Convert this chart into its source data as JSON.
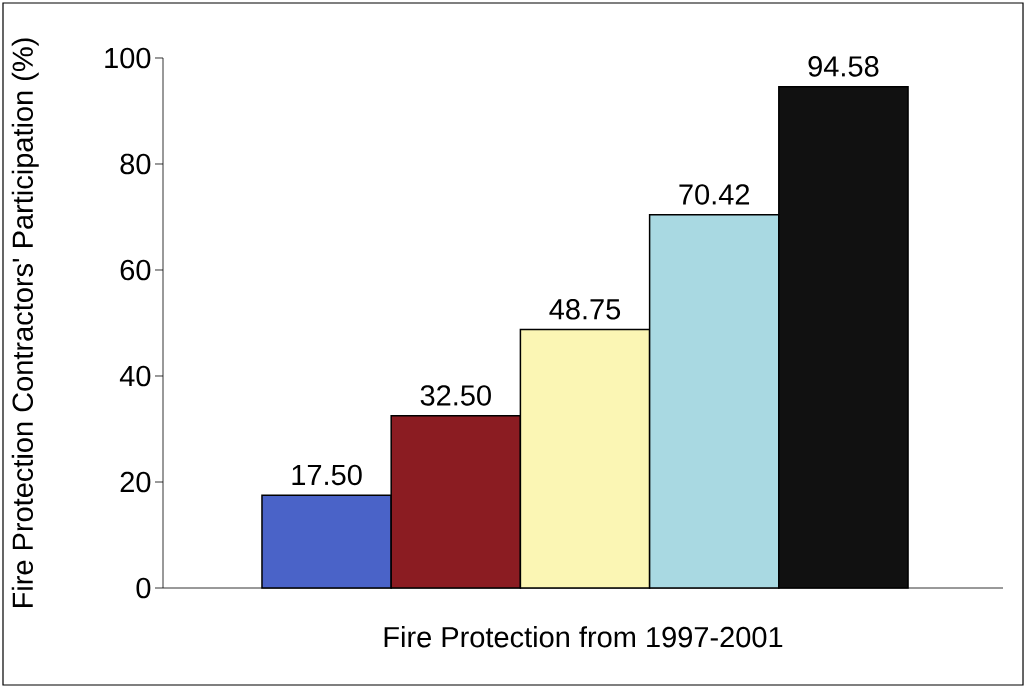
{
  "chart_data": {
    "type": "bar",
    "xlabel": "Fire Protection from 1997-2001",
    "ylabel": "Fire Protection Contractors' Participation (%)",
    "categories": [
      null,
      null,
      null,
      null,
      null
    ],
    "values": [
      17.5,
      32.5,
      48.75,
      70.42,
      94.58
    ],
    "colors": [
      "#4a63c8",
      "#8b1c22",
      "#fbf6b4",
      "#a9d9e2",
      "#111111"
    ],
    "value_labels": [
      "17.50",
      "32.50",
      "48.75",
      "70.42",
      "94.58"
    ],
    "ylim": [
      0,
      100
    ],
    "yticks": [
      0,
      20,
      40,
      60,
      80,
      100
    ]
  }
}
